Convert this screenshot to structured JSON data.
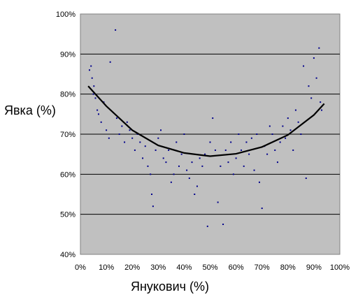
{
  "chart_data": {
    "type": "scatter",
    "xlabel": "Янукович (%)",
    "ylabel": "Явка (%)",
    "xlim": [
      0,
      100
    ],
    "ylim": [
      40,
      100
    ],
    "x_ticks": [
      "0%",
      "10%",
      "20%",
      "30%",
      "40%",
      "50%",
      "60%",
      "70%",
      "80%",
      "90%",
      "100%"
    ],
    "y_ticks": [
      "40%",
      "50%",
      "60%",
      "70%",
      "80%",
      "90%",
      "100%"
    ],
    "grid": "horizontal",
    "plot_background": "#c0c0c0",
    "point_color": "#00008b",
    "trend_color": "#000000",
    "points_visible_sample": [
      [
        3.5,
        86
      ],
      [
        4.5,
        84
      ],
      [
        5.2,
        82
      ],
      [
        5.8,
        79
      ],
      [
        6.5,
        76
      ],
      [
        4.1,
        87
      ],
      [
        5.0,
        80
      ],
      [
        7.0,
        75
      ],
      [
        8.0,
        73
      ],
      [
        9.0,
        78
      ],
      [
        10.0,
        71
      ],
      [
        11.0,
        69
      ],
      [
        11.5,
        88
      ],
      [
        13.5,
        96
      ],
      [
        14.0,
        74
      ],
      [
        15.0,
        70
      ],
      [
        16.0,
        72
      ],
      [
        17.0,
        68
      ],
      [
        18.0,
        73
      ],
      [
        19.0,
        71
      ],
      [
        20.0,
        69
      ],
      [
        21.0,
        66
      ],
      [
        22.0,
        70
      ],
      [
        23.0,
        68
      ],
      [
        24.0,
        64
      ],
      [
        25.0,
        67
      ],
      [
        26.0,
        62
      ],
      [
        27.0,
        60
      ],
      [
        27.5,
        55
      ],
      [
        28.0,
        52
      ],
      [
        29.0,
        66
      ],
      [
        30.0,
        69
      ],
      [
        31.0,
        71
      ],
      [
        32.0,
        64
      ],
      [
        33.0,
        63
      ],
      [
        34.0,
        66
      ],
      [
        35.0,
        58
      ],
      [
        36.0,
        60
      ],
      [
        37.0,
        68
      ],
      [
        38.0,
        62
      ],
      [
        39.0,
        65
      ],
      [
        40.0,
        70
      ],
      [
        41.0,
        61
      ],
      [
        42.0,
        59
      ],
      [
        43.0,
        63
      ],
      [
        44.0,
        55
      ],
      [
        45.0,
        57
      ],
      [
        46.0,
        64
      ],
      [
        47.0,
        62
      ],
      [
        48.0,
        65
      ],
      [
        49.0,
        47
      ],
      [
        50.0,
        68
      ],
      [
        51.0,
        74
      ],
      [
        52.0,
        66
      ],
      [
        53.0,
        53
      ],
      [
        54.0,
        62
      ],
      [
        55.0,
        47.5
      ],
      [
        56.0,
        66
      ],
      [
        57.0,
        63
      ],
      [
        58.0,
        68
      ],
      [
        59.0,
        60
      ],
      [
        60.0,
        64
      ],
      [
        61.0,
        70
      ],
      [
        62.0,
        66
      ],
      [
        63.0,
        62
      ],
      [
        64.0,
        68
      ],
      [
        65.0,
        65
      ],
      [
        66.0,
        69
      ],
      [
        67.0,
        61
      ],
      [
        68.0,
        70
      ],
      [
        69.0,
        58
      ],
      [
        70.0,
        51.5
      ],
      [
        71.0,
        67
      ],
      [
        72.0,
        65
      ],
      [
        73.0,
        72
      ],
      [
        74.0,
        70
      ],
      [
        75.0,
        66
      ],
      [
        76.0,
        63
      ],
      [
        77.0,
        68
      ],
      [
        78.0,
        72
      ],
      [
        79.0,
        69
      ],
      [
        80.0,
        74
      ],
      [
        81.0,
        71
      ],
      [
        82.0,
        66
      ],
      [
        83.0,
        76
      ],
      [
        84.0,
        73
      ],
      [
        85.0,
        70
      ],
      [
        86.0,
        87
      ],
      [
        87.0,
        59
      ],
      [
        88.0,
        82
      ],
      [
        89.0,
        79
      ],
      [
        90.0,
        89
      ],
      [
        91.0,
        84
      ],
      [
        92.0,
        91.5
      ],
      [
        92.5,
        78
      ],
      [
        93.0,
        76
      ]
    ],
    "trend": {
      "type": "quadratic",
      "x": [
        3,
        10,
        20,
        30,
        40,
        50,
        60,
        70,
        80,
        90,
        94
      ],
      "y": [
        82,
        77,
        71,
        67.2,
        65.3,
        64.5,
        65.1,
        66.8,
        69.8,
        74.8,
        77.6
      ]
    }
  }
}
